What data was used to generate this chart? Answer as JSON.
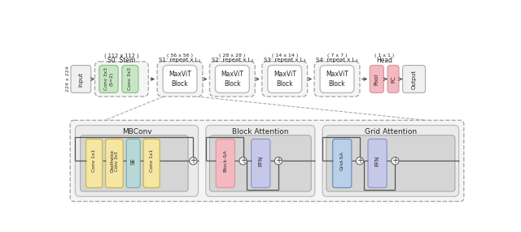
{
  "bg_color": "#ffffff",
  "top_row": {
    "input_label": "Input",
    "input_subtext": "224 x 224",
    "output_label": "Output",
    "s0_title": "S0: Stem",
    "s0_sub": "( 112 x 112 )",
    "s1_title": "S1: repeat x L₁",
    "s1_sub": "( 56 x 56 )",
    "s2_title": "S2: repeat x L₂",
    "s2_sub": "( 28 x 28 )",
    "s3_title": "S3: repeat x L₃",
    "s3_sub": "( 14 x 14 )",
    "s4_title": "S4: repeat x L₄",
    "s4_sub": "( 7 x 7 )",
    "head_title": "Head",
    "head_sub": "( 1 x 1 )",
    "conv1_label": "Conv 3x3\n(S=2)",
    "conv2_label": "Conv 3x3",
    "maxvit_label": "MaxViT\nBlock",
    "pool_label": "Pool",
    "fc_label": "FC"
  },
  "bottom_row": {
    "mbconv_title": "MBConv",
    "block_attn_title": "Block Attention",
    "grid_attn_title": "Grid Attention",
    "conv1x1_a": "Conv 1x1",
    "depthwise": "Depthwise\nConv 3x3",
    "se": "SE",
    "conv1x1_b": "Conv 1x1",
    "block_sa": "Block-SA",
    "ffn1": "FFN",
    "grid_sa": "Grid-SA",
    "ffn2": "FFN"
  },
  "colors": {
    "green_box": "#c8e6c3",
    "green_border": "#8bc48a",
    "pink_box": "#f4b8c0",
    "pink_border": "#d99aa0",
    "blue_box": "#c5c8e8",
    "blue_border": "#9098c8",
    "yellow_box": "#f5e6a3",
    "yellow_border": "#c8b84a",
    "teal_box": "#b8d8d8",
    "teal_border": "#7ab0b0",
    "light_gray_box": "#e8e8e8",
    "inner_gray": "#d5d5d5",
    "section_bg": "#ebebeb",
    "white": "#ffffff",
    "dashed_border": "#aaaaaa",
    "arrow_color": "#555555",
    "text_color": "#222222",
    "input_output_bg": "#f0f0f0",
    "maxvit_bg": "#ffffff"
  }
}
